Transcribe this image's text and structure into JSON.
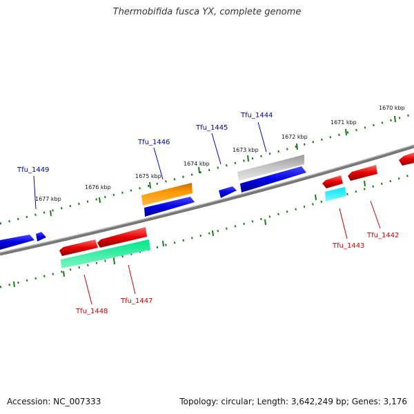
{
  "title": "Thermobifida fusca YX, complete genome",
  "footer": {
    "accession": "Accession: NC_007333",
    "summary": "Topology: circular; Length: 3,642,249 bp; Genes: 3,176"
  },
  "colors": {
    "forward": "#0000e6",
    "reverse": "#e60000",
    "orange": "#ff9900",
    "gray": "#b0b0b0",
    "cyan": "#00e6ff",
    "green": "#00e68a",
    "tick": "#1a7a1a",
    "label_forward": "#00008b",
    "label_reverse": "#cc0000",
    "backbone": "#777777"
  },
  "kbp_labels": [
    "1670 kbp",
    "1671 kbp",
    "1672 kbp",
    "1673 kbp",
    "1674 kbp",
    "1675 kbp",
    "1676 kbp",
    "1677 kbp"
  ],
  "gene_labels": [
    "Tfu_1444",
    "Tfu_1445",
    "Tfu_1446",
    "Tfu_1449",
    "Tfu_1442",
    "Tfu_1443",
    "Tfu_1447",
    "Tfu_1448"
  ]
}
